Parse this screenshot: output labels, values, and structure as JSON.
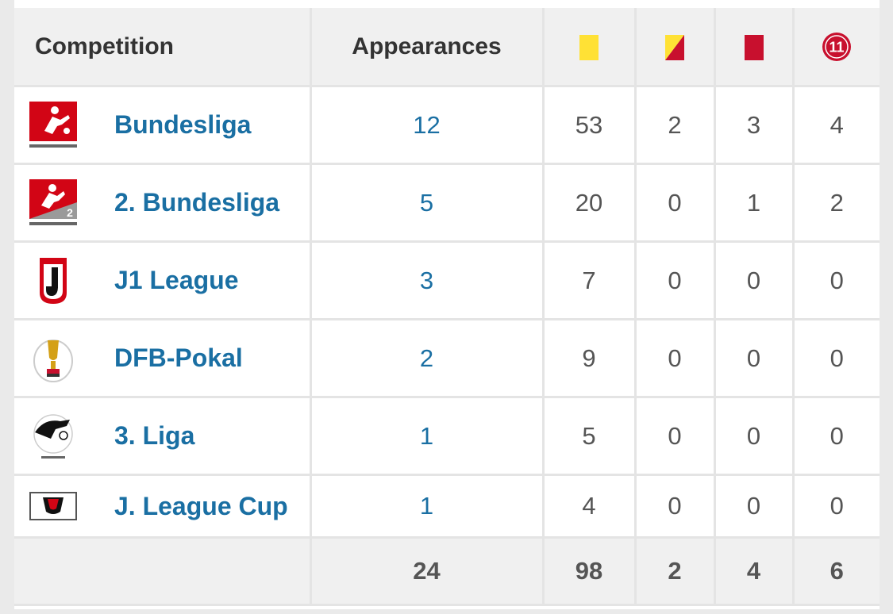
{
  "header": {
    "competition": "Competition",
    "appearances": "Appearances",
    "icons": [
      "yellow-card-icon",
      "second-yellow-card-icon",
      "red-card-icon",
      "penalty-icon"
    ],
    "penalty_label": "11",
    "colors": {
      "yellow": "#ffe135",
      "red": "#c8102e",
      "link": "#1a6fa3"
    }
  },
  "rows": [
    {
      "competition": "Bundesliga",
      "logo": "bundesliga-logo-icon",
      "appearances": "12",
      "yellow": "53",
      "second_yellow": "2",
      "red": "3",
      "penalty": "4"
    },
    {
      "competition": "2. Bundesliga",
      "logo": "2-bundesliga-logo-icon",
      "appearances": "5",
      "yellow": "20",
      "second_yellow": "0",
      "red": "1",
      "penalty": "2"
    },
    {
      "competition": "J1 League",
      "logo": "j1-league-logo-icon",
      "appearances": "3",
      "yellow": "7",
      "second_yellow": "0",
      "red": "0",
      "penalty": "0"
    },
    {
      "competition": "DFB-Pokal",
      "logo": "dfb-pokal-logo-icon",
      "appearances": "2",
      "yellow": "9",
      "second_yellow": "0",
      "red": "0",
      "penalty": "0"
    },
    {
      "competition": "3. Liga",
      "logo": "3-liga-logo-icon",
      "appearances": "1",
      "yellow": "5",
      "second_yellow": "0",
      "red": "0",
      "penalty": "0"
    },
    {
      "competition": "J. League Cup",
      "logo": "j-league-cup-logo-icon",
      "appearances": "1",
      "yellow": "4",
      "second_yellow": "0",
      "red": "0",
      "penalty": "0"
    }
  ],
  "totals": {
    "appearances": "24",
    "yellow": "98",
    "second_yellow": "2",
    "red": "4",
    "penalty": "6"
  }
}
